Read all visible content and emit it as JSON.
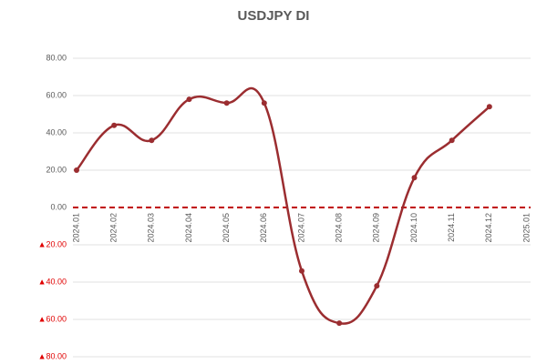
{
  "chart_data": {
    "type": "line",
    "title": "USDJPY DI",
    "categories": [
      "2024.01",
      "2024.02",
      "2024.03",
      "2024.04",
      "2024.05",
      "2024.06",
      "2024.07",
      "2024.08",
      "2024.09",
      "2024.10",
      "2024.11",
      "2024.12",
      "2025.01"
    ],
    "values": [
      20,
      44,
      36,
      58,
      56,
      56,
      -34,
      -62,
      -42,
      16,
      36,
      54,
      null
    ],
    "color": "#9b2d30",
    "smooth": true,
    "markers": true,
    "ylim": [
      -80,
      80
    ],
    "yticks": [
      {
        "value": -80,
        "label": "▲80.00"
      },
      {
        "value": -60,
        "label": "▲60.00"
      },
      {
        "value": -40,
        "label": "▲40.00"
      },
      {
        "value": -20,
        "label": "▲20.00"
      },
      {
        "value": 0,
        "label": "0.00"
      },
      {
        "value": 20,
        "label": "20.00"
      },
      {
        "value": 40,
        "label": "40.00"
      },
      {
        "value": 60,
        "label": "60.00"
      },
      {
        "value": 80,
        "label": "80.00"
      }
    ],
    "negative_tick_color": "#e00000",
    "grid": true,
    "zero_line_color": "#c00000"
  }
}
